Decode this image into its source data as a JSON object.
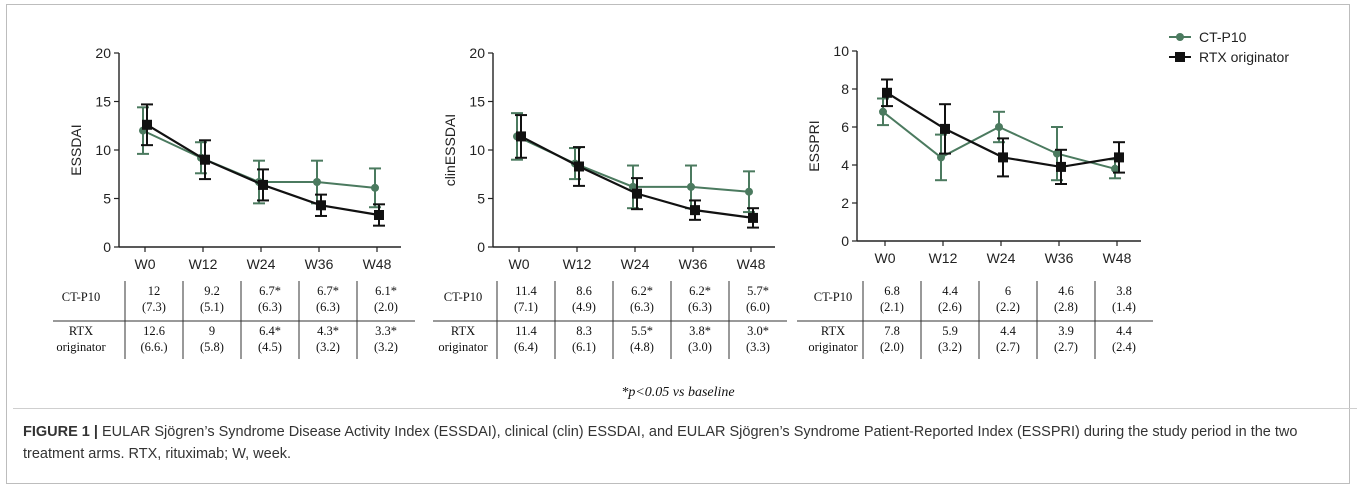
{
  "colors": {
    "ctp10": "#4b7a5f",
    "rtx": "#111111",
    "axis": "#222222"
  },
  "legend": {
    "items": [
      {
        "label": "CT-P10",
        "marker": "circle"
      },
      {
        "label": "RTX originator",
        "marker": "square"
      }
    ]
  },
  "chart_data": [
    {
      "type": "line",
      "ylabel": "ESSDAI",
      "categories": [
        "W0",
        "W12",
        "W24",
        "W36",
        "W48"
      ],
      "ylim": [
        0,
        20
      ],
      "yticks": [
        0,
        5,
        10,
        15,
        20
      ],
      "series": [
        {
          "name": "CT-P10",
          "values": [
            12,
            9.2,
            6.7,
            6.7,
            6.1
          ],
          "sd": [
            2.4,
            1.6,
            2.2,
            2.2,
            2.0
          ]
        },
        {
          "name": "RTX originator",
          "values": [
            12.6,
            9,
            6.4,
            4.3,
            3.3
          ],
          "sd": [
            2.1,
            2.0,
            1.6,
            1.1,
            1.1
          ]
        }
      ],
      "table": {
        "rows": [
          {
            "label": [
              "CT-P10"
            ],
            "cells": [
              [
                "12",
                "(7.3)"
              ],
              [
                "9.2",
                "(5.1)"
              ],
              [
                "6.7*",
                "(6.3)"
              ],
              [
                "6.7*",
                "(6.3)"
              ],
              [
                "6.1*",
                "(2.0)"
              ]
            ]
          },
          {
            "label": [
              "RTX",
              "originator"
            ],
            "cells": [
              [
                "12.6",
                "(6.6.)"
              ],
              [
                "9",
                "(5.8)"
              ],
              [
                "6.4*",
                "(4.5)"
              ],
              [
                "4.3*",
                "(3.2)"
              ],
              [
                "3.3*",
                "(3.2)"
              ]
            ]
          }
        ]
      }
    },
    {
      "type": "line",
      "ylabel": "clinESSDAI",
      "categories": [
        "W0",
        "W12",
        "W24",
        "W36",
        "W48"
      ],
      "ylim": [
        0,
        20
      ],
      "yticks": [
        0,
        5,
        10,
        15,
        20
      ],
      "series": [
        {
          "name": "CT-P10",
          "values": [
            11.4,
            8.6,
            6.2,
            6.2,
            5.7
          ],
          "sd": [
            2.4,
            1.6,
            2.2,
            2.2,
            2.1
          ]
        },
        {
          "name": "RTX originator",
          "values": [
            11.4,
            8.3,
            5.5,
            3.8,
            3.0
          ],
          "sd": [
            2.2,
            2.0,
            1.6,
            1.0,
            1.0
          ]
        }
      ],
      "table": {
        "rows": [
          {
            "label": [
              "CT-P10"
            ],
            "cells": [
              [
                "11.4",
                "(7.1)"
              ],
              [
                "8.6",
                "(4.9)"
              ],
              [
                "6.2*",
                "(6.3)"
              ],
              [
                "6.2*",
                "(6.3)"
              ],
              [
                "5.7*",
                "(6.0)"
              ]
            ]
          },
          {
            "label": [
              "RTX",
              "originator"
            ],
            "cells": [
              [
                "11.4",
                "(6.4)"
              ],
              [
                "8.3",
                "(6.1)"
              ],
              [
                "5.5*",
                "(4.8)"
              ],
              [
                "3.8*",
                "(3.0)"
              ],
              [
                "3.0*",
                "(3.3)"
              ]
            ]
          }
        ]
      }
    },
    {
      "type": "line",
      "ylabel": "ESSPRI",
      "categories": [
        "W0",
        "W12",
        "W24",
        "W36",
        "W48"
      ],
      "ylim": [
        0,
        10
      ],
      "yticks": [
        0,
        2,
        4,
        6,
        8,
        10
      ],
      "series": [
        {
          "name": "CT-P10",
          "values": [
            6.8,
            4.4,
            6.0,
            4.6,
            3.8
          ],
          "sd": [
            0.7,
            1.2,
            0.8,
            1.4,
            0.5
          ]
        },
        {
          "name": "RTX originator",
          "values": [
            7.8,
            5.9,
            4.4,
            3.9,
            4.4
          ],
          "sd": [
            0.7,
            1.3,
            1.0,
            0.9,
            0.8
          ]
        }
      ],
      "table": {
        "rows": [
          {
            "label": [
              "CT-P10"
            ],
            "cells": [
              [
                "6.8",
                "(2.1)"
              ],
              [
                "4.4",
                "(2.6)"
              ],
              [
                "6",
                "(2.2)"
              ],
              [
                "4.6",
                "(2.8)"
              ],
              [
                "3.8",
                "(1.4)"
              ]
            ]
          },
          {
            "label": [
              "RTX",
              "originator"
            ],
            "cells": [
              [
                "7.8",
                "(2.0)"
              ],
              [
                "5.9",
                "(3.2)"
              ],
              [
                "4.4",
                "(2.7)"
              ],
              [
                "3.9",
                "(2.7)"
              ],
              [
                "4.4",
                "(2.4)"
              ]
            ]
          }
        ]
      }
    }
  ],
  "footnote": "*p<0.05 vs baseline",
  "caption": {
    "label": "FIGURE 1 |",
    "text": " EULAR Sjögren’s Syndrome Disease Activity Index (ESSDAI), clinical (clin) ESSDAI, and EULAR Sjögren’s Syndrome Patient-Reported Index (ESSPRI) during the study period in the two treatment arms. RTX, rituximab; W, week."
  }
}
